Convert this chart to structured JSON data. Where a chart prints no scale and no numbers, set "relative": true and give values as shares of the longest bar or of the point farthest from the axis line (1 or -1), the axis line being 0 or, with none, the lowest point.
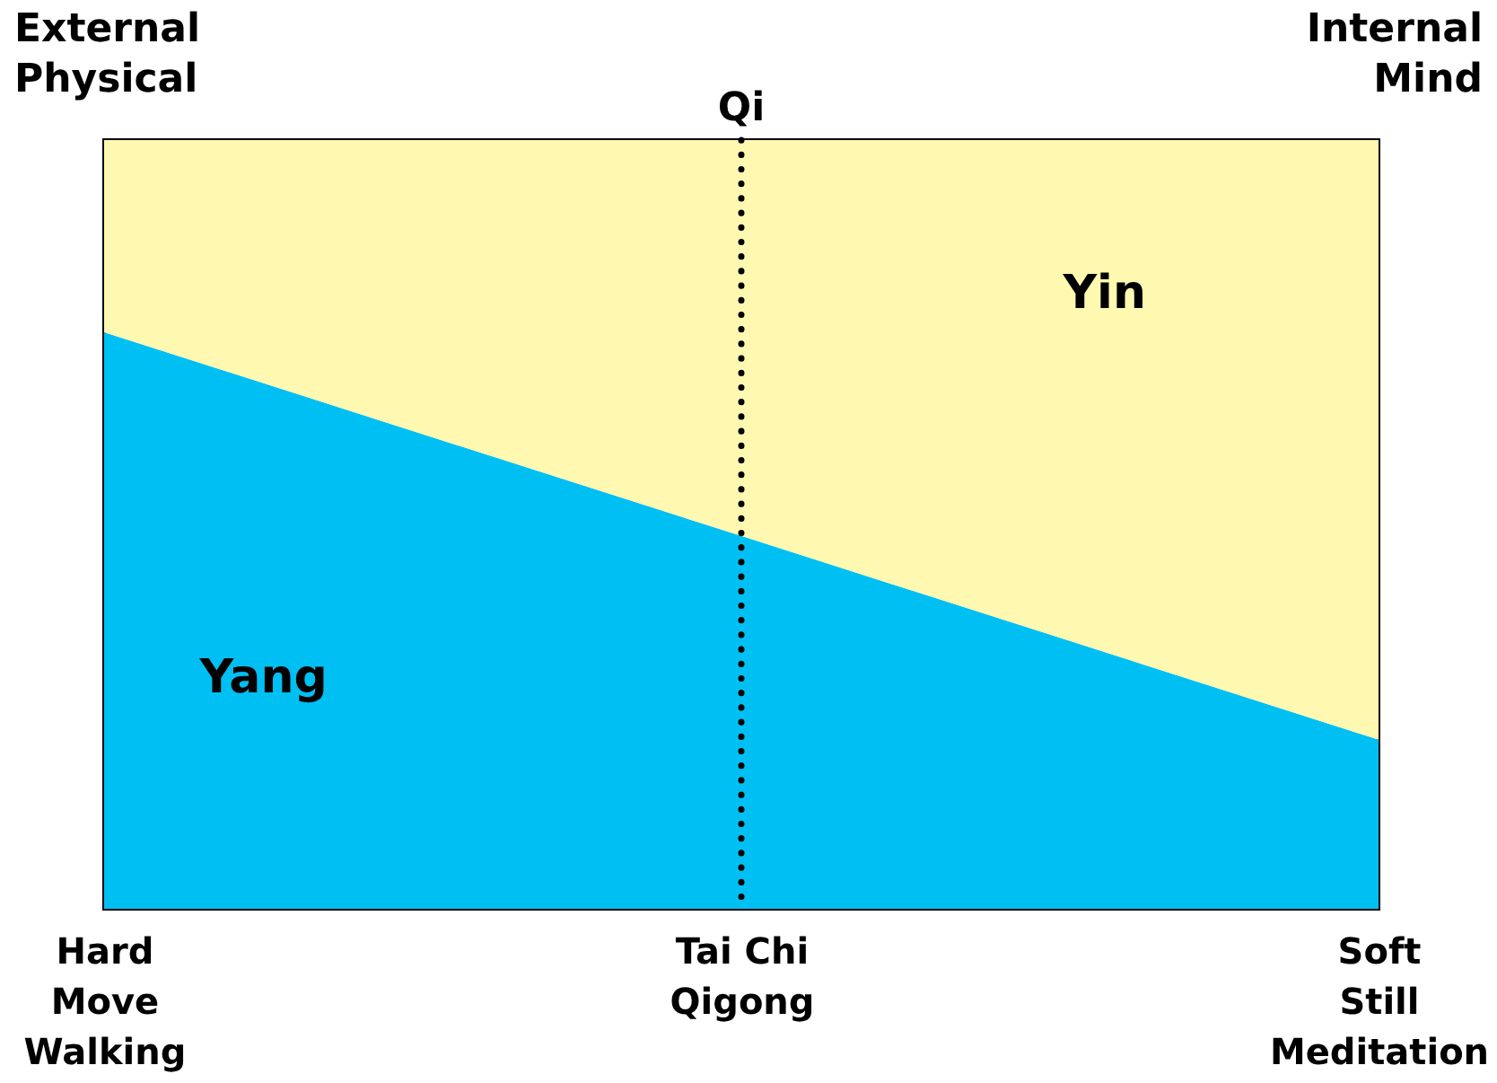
{
  "chart_data": {
    "type": "area",
    "stacked": true,
    "relative": true,
    "legend": false,
    "grid": false,
    "categories": [
      "Hard\nMove\nWalking",
      "Tai Chi\nQigong",
      "Soft\nStill\nMeditation"
    ],
    "series": [
      {
        "name": "Yang",
        "color": "#00c0f3",
        "values": [
          0.75,
          0.485,
          0.22
        ]
      },
      {
        "name": "Yin",
        "color": "#fff8b0",
        "values": [
          0.25,
          0.515,
          0.78
        ]
      }
    ],
    "ref_lines": [
      {
        "axis": "x",
        "value": "Tai Chi\nQigong",
        "label": "Qi",
        "line_style": "dotted"
      }
    ],
    "annotations": [
      "External\nPhysical",
      "Internal\nMind"
    ]
  }
}
